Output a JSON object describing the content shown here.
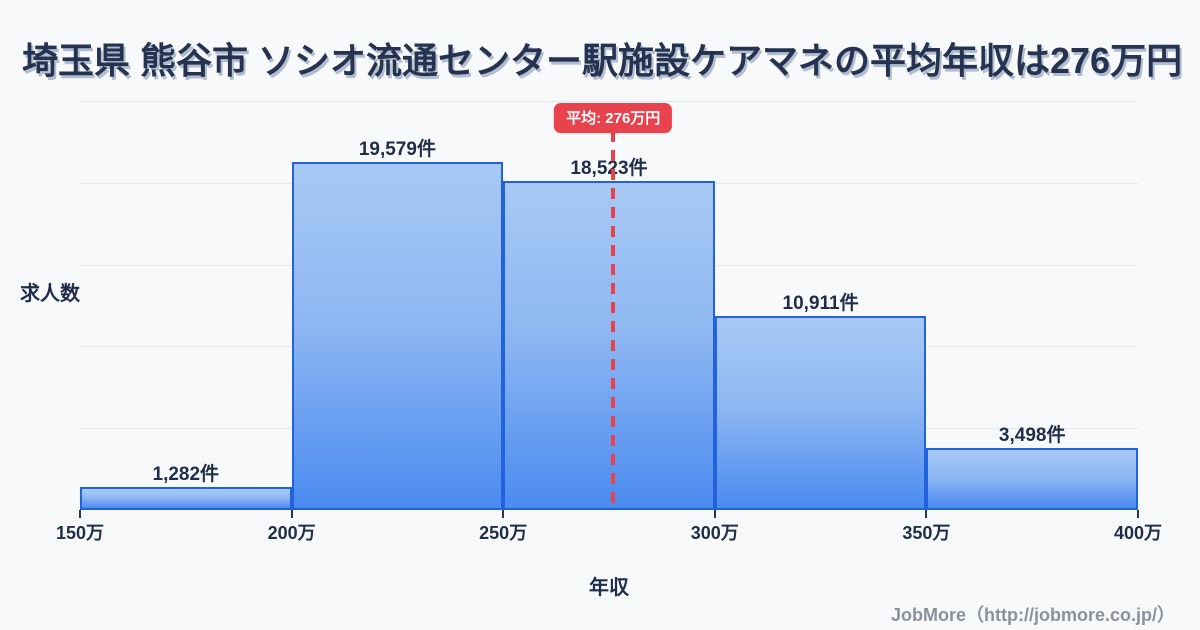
{
  "title": "埼玉県 熊谷市 ソシオ流通センター駅施設ケアマネの平均年収は276万円",
  "chart_data": {
    "type": "bar",
    "title": "埼玉県 熊谷市 ソシオ流通センター駅施設ケアマネの平均年収は276万円",
    "xlabel": "年収",
    "ylabel": "求人数",
    "categories": [
      "150万-200万",
      "200万-250万",
      "250万-300万",
      "300万-350万",
      "350万-400万"
    ],
    "values": [
      1282,
      19579,
      18523,
      10911,
      3498
    ],
    "value_labels": [
      "1,282件",
      "19,579件",
      "18,523件",
      "10,911件",
      "3,498件"
    ],
    "x_ticks": [
      "150万",
      "200万",
      "250万",
      "300万",
      "350万",
      "400万"
    ],
    "xlim": [
      150,
      400
    ],
    "ylim": [
      0,
      23000
    ],
    "grid": "horizontal",
    "grid_divisions": 5,
    "legend": "none",
    "average_line": {
      "value": 276,
      "label": "平均: 276万円",
      "style": "dashed-vertical"
    },
    "colors": {
      "background": "#f8f9fb",
      "bar_fill_top": "#a7c9f4",
      "bar_fill_bottom": "#4b8bf0",
      "bar_border": "#2262dc",
      "average_accent": "#e8424d",
      "text": "#1f2d49",
      "title_text": "#253350",
      "gridline": "#e4e7ee",
      "credit_text": "#8b919c"
    }
  },
  "footer": {
    "credit": "JobMore（http://jobmore.co.jp/）"
  }
}
